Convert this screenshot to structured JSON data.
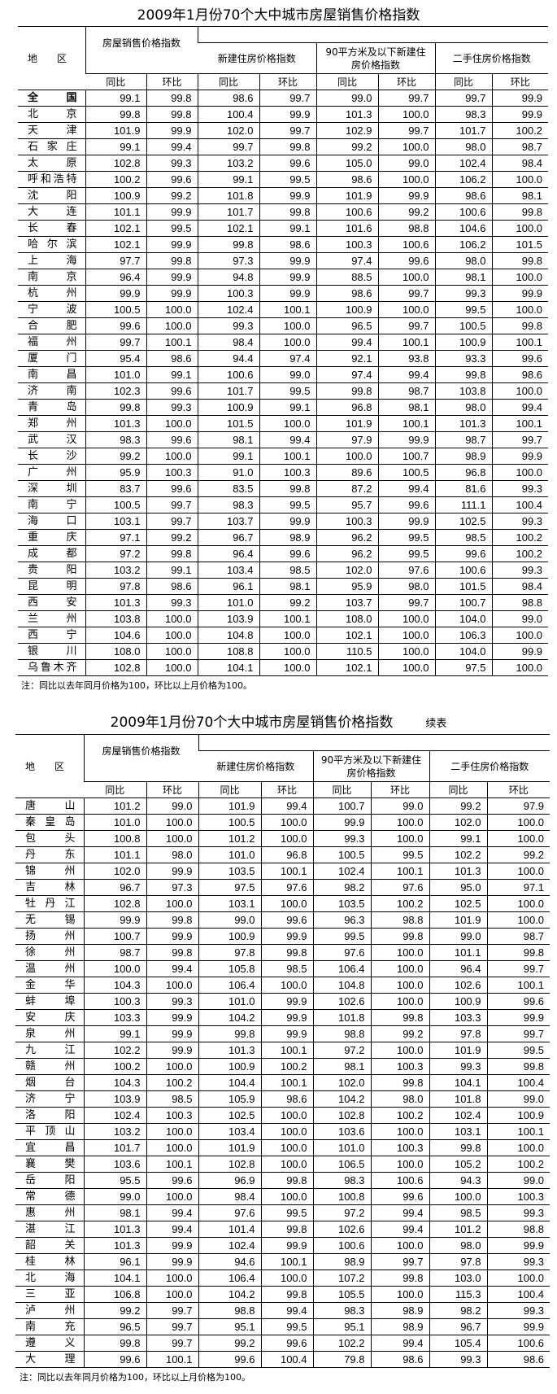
{
  "table1": {
    "title": "2009年1月份70个大中城市房屋销售价格指数",
    "header": {
      "region": "地　　区",
      "groups": [
        "房屋销售价格指数",
        "新建住房价格指数",
        "90平方米及以下新建住房价格指数",
        "二手住房价格指数"
      ],
      "sub": [
        "同比",
        "环比"
      ]
    },
    "rows": [
      {
        "city": "全国",
        "values": [
          "99.1",
          "99.8",
          "98.6",
          "99.7",
          "99.0",
          "99.7",
          "99.7",
          "99.9"
        ]
      },
      {
        "city": "北京",
        "values": [
          "99.8",
          "99.8",
          "100.4",
          "99.9",
          "101.3",
          "100.0",
          "98.3",
          "99.9"
        ]
      },
      {
        "city": "天津",
        "values": [
          "101.9",
          "99.9",
          "102.0",
          "99.7",
          "102.9",
          "99.7",
          "101.7",
          "100.2"
        ]
      },
      {
        "city": "石家庄",
        "values": [
          "99.1",
          "99.4",
          "99.7",
          "99.8",
          "99.2",
          "100.0",
          "98.0",
          "98.7"
        ]
      },
      {
        "city": "太原",
        "values": [
          "102.8",
          "99.3",
          "103.2",
          "99.6",
          "105.0",
          "99.0",
          "102.4",
          "98.4"
        ]
      },
      {
        "city": "呼和浩特",
        "values": [
          "100.2",
          "99.6",
          "99.1",
          "99.5",
          "98.6",
          "100.0",
          "106.2",
          "100.0"
        ]
      },
      {
        "city": "沈阳",
        "values": [
          "100.9",
          "99.2",
          "101.8",
          "99.9",
          "101.9",
          "99.9",
          "98.6",
          "98.1"
        ]
      },
      {
        "city": "大连",
        "values": [
          "101.1",
          "99.9",
          "101.7",
          "99.8",
          "100.6",
          "99.2",
          "100.6",
          "99.8"
        ]
      },
      {
        "city": "长春",
        "values": [
          "102.1",
          "99.5",
          "102.1",
          "99.1",
          "101.6",
          "98.8",
          "104.6",
          "100.0"
        ]
      },
      {
        "city": "哈尔滨",
        "values": [
          "102.1",
          "99.9",
          "99.8",
          "98.6",
          "100.3",
          "100.6",
          "106.2",
          "101.5"
        ]
      },
      {
        "city": "上海",
        "values": [
          "97.7",
          "99.8",
          "97.3",
          "99.9",
          "97.4",
          "99.6",
          "98.0",
          "99.8"
        ]
      },
      {
        "city": "南京",
        "values": [
          "96.4",
          "99.9",
          "94.8",
          "99.9",
          "88.5",
          "100.0",
          "98.1",
          "100.0"
        ]
      },
      {
        "city": "杭州",
        "values": [
          "99.9",
          "99.9",
          "100.3",
          "99.9",
          "98.6",
          "99.7",
          "99.3",
          "99.9"
        ]
      },
      {
        "city": "宁波",
        "values": [
          "100.5",
          "100.0",
          "102.4",
          "100.1",
          "100.9",
          "100.0",
          "99.5",
          "100.0"
        ]
      },
      {
        "city": "合肥",
        "values": [
          "99.6",
          "100.0",
          "99.3",
          "100.0",
          "96.5",
          "99.7",
          "100.5",
          "99.8"
        ]
      },
      {
        "city": "福州",
        "values": [
          "99.7",
          "100.1",
          "98.4",
          "100.0",
          "99.4",
          "100.1",
          "100.9",
          "100.1"
        ]
      },
      {
        "city": "厦门",
        "values": [
          "95.4",
          "98.6",
          "94.4",
          "97.4",
          "92.1",
          "93.8",
          "93.3",
          "99.6"
        ]
      },
      {
        "city": "南昌",
        "values": [
          "101.0",
          "99.1",
          "100.6",
          "99.0",
          "97.4",
          "99.4",
          "99.8",
          "98.6"
        ]
      },
      {
        "city": "济南",
        "values": [
          "102.3",
          "99.6",
          "101.7",
          "99.5",
          "99.8",
          "98.7",
          "103.8",
          "100.0"
        ]
      },
      {
        "city": "青岛",
        "values": [
          "99.8",
          "99.3",
          "100.9",
          "99.1",
          "96.8",
          "98.1",
          "98.0",
          "99.4"
        ]
      },
      {
        "city": "郑州",
        "values": [
          "101.3",
          "100.0",
          "101.5",
          "100.0",
          "101.9",
          "100.1",
          "101.3",
          "100.1"
        ]
      },
      {
        "city": "武汉",
        "values": [
          "98.3",
          "99.6",
          "98.1",
          "99.4",
          "97.9",
          "99.9",
          "98.7",
          "99.7"
        ]
      },
      {
        "city": "长沙",
        "values": [
          "99.2",
          "100.0",
          "99.1",
          "100.1",
          "100.0",
          "100.7",
          "98.9",
          "99.9"
        ]
      },
      {
        "city": "广州",
        "values": [
          "95.9",
          "100.3",
          "91.0",
          "100.3",
          "89.6",
          "100.5",
          "96.8",
          "100.0"
        ]
      },
      {
        "city": "深圳",
        "values": [
          "83.7",
          "99.6",
          "83.5",
          "99.8",
          "87.2",
          "99.4",
          "81.6",
          "99.3"
        ]
      },
      {
        "city": "南宁",
        "values": [
          "100.5",
          "99.7",
          "98.3",
          "99.5",
          "95.7",
          "99.6",
          "111.1",
          "100.4"
        ]
      },
      {
        "city": "海口",
        "values": [
          "103.1",
          "99.7",
          "103.7",
          "99.9",
          "100.3",
          "99.9",
          "102.5",
          "99.3"
        ]
      },
      {
        "city": "重庆",
        "values": [
          "97.1",
          "99.2",
          "96.7",
          "98.9",
          "96.2",
          "99.5",
          "98.5",
          "100.2"
        ]
      },
      {
        "city": "成都",
        "values": [
          "97.2",
          "99.8",
          "96.4",
          "99.6",
          "96.2",
          "99.5",
          "99.6",
          "100.2"
        ]
      },
      {
        "city": "贵阳",
        "values": [
          "103.2",
          "99.1",
          "103.4",
          "98.5",
          "102.0",
          "97.6",
          "100.6",
          "99.3"
        ]
      },
      {
        "city": "昆明",
        "values": [
          "97.8",
          "98.6",
          "96.1",
          "98.1",
          "95.9",
          "98.0",
          "101.5",
          "98.4"
        ]
      },
      {
        "city": "西安",
        "values": [
          "101.3",
          "99.3",
          "101.0",
          "99.2",
          "103.7",
          "99.7",
          "100.7",
          "98.8"
        ]
      },
      {
        "city": "兰州",
        "values": [
          "103.8",
          "100.0",
          "103.9",
          "100.1",
          "108.0",
          "100.0",
          "104.0",
          "99.0"
        ]
      },
      {
        "city": "西宁",
        "values": [
          "104.6",
          "100.0",
          "104.8",
          "100.0",
          "102.1",
          "100.0",
          "106.3",
          "100.0"
        ]
      },
      {
        "city": "银川",
        "values": [
          "108.0",
          "100.0",
          "108.8",
          "100.0",
          "110.5",
          "100.0",
          "104.0",
          "99.9"
        ]
      },
      {
        "city": "乌鲁木齐",
        "values": [
          "102.8",
          "100.0",
          "104.1",
          "100.0",
          "102.1",
          "100.0",
          "97.5",
          "100.0"
        ]
      }
    ],
    "note": "注：同比以去年同月价格为100，环比以上月价格为100。"
  },
  "table2": {
    "title": "2009年1月份70个大中城市房屋销售价格指数",
    "suffix": "续表",
    "header": {
      "region": "地　　区",
      "groups": [
        "房屋销售价格指数",
        "新建住房价格指数",
        "90平方米及以下新建住房价格指数",
        "二手住房价格指数"
      ],
      "sub": [
        "同比",
        "环比"
      ]
    },
    "rows": [
      {
        "city": "唐山",
        "values": [
          "101.2",
          "99.0",
          "101.9",
          "99.4",
          "100.7",
          "99.0",
          "99.2",
          "97.9"
        ]
      },
      {
        "city": "秦皇岛",
        "values": [
          "101.0",
          "100.0",
          "100.5",
          "100.0",
          "99.9",
          "100.0",
          "102.0",
          "100.0"
        ]
      },
      {
        "city": "包头",
        "values": [
          "100.8",
          "100.0",
          "101.2",
          "100.0",
          "99.3",
          "100.0",
          "99.1",
          "100.0"
        ]
      },
      {
        "city": "丹东",
        "values": [
          "101.1",
          "98.0",
          "101.0",
          "96.8",
          "100.5",
          "99.5",
          "102.2",
          "99.2"
        ]
      },
      {
        "city": "锦州",
        "values": [
          "102.0",
          "99.9",
          "103.5",
          "100.1",
          "102.4",
          "100.1",
          "101.3",
          "100.0"
        ]
      },
      {
        "city": "吉林",
        "values": [
          "96.7",
          "97.3",
          "97.5",
          "97.6",
          "98.2",
          "97.6",
          "95.0",
          "97.1"
        ]
      },
      {
        "city": "牡丹江",
        "values": [
          "102.8",
          "100.0",
          "103.1",
          "100.0",
          "103.5",
          "100.2",
          "102.5",
          "100.0"
        ]
      },
      {
        "city": "无锡",
        "values": [
          "99.9",
          "99.8",
          "99.0",
          "99.6",
          "96.3",
          "98.8",
          "101.9",
          "100.0"
        ]
      },
      {
        "city": "扬州",
        "values": [
          "100.7",
          "99.9",
          "100.9",
          "99.9",
          "99.5",
          "99.8",
          "99.0",
          "98.7"
        ]
      },
      {
        "city": "徐州",
        "values": [
          "98.7",
          "99.8",
          "97.8",
          "99.8",
          "97.6",
          "100.0",
          "101.1",
          "99.8"
        ]
      },
      {
        "city": "温州",
        "values": [
          "100.0",
          "99.4",
          "105.8",
          "98.5",
          "106.4",
          "100.0",
          "96.4",
          "99.7"
        ]
      },
      {
        "city": "金华",
        "values": [
          "104.3",
          "100.0",
          "106.4",
          "100.0",
          "104.8",
          "100.0",
          "102.6",
          "100.1"
        ]
      },
      {
        "city": "蚌埠",
        "values": [
          "100.3",
          "99.3",
          "101.0",
          "99.9",
          "102.6",
          "100.0",
          "100.9",
          "99.6"
        ]
      },
      {
        "city": "安庆",
        "values": [
          "103.3",
          "99.9",
          "104.2",
          "99.9",
          "101.8",
          "99.8",
          "103.3",
          "99.9"
        ]
      },
      {
        "city": "泉州",
        "values": [
          "99.1",
          "99.9",
          "99.8",
          "99.9",
          "98.8",
          "99.2",
          "97.8",
          "99.7"
        ]
      },
      {
        "city": "九江",
        "values": [
          "102.2",
          "99.9",
          "101.3",
          "100.1",
          "97.2",
          "100.0",
          "101.9",
          "99.5"
        ]
      },
      {
        "city": "赣州",
        "values": [
          "100.2",
          "100.0",
          "100.9",
          "100.2",
          "98.1",
          "100.3",
          "99.3",
          "99.8"
        ]
      },
      {
        "city": "烟台",
        "values": [
          "104.3",
          "100.2",
          "104.4",
          "100.1",
          "102.0",
          "99.8",
          "104.1",
          "100.4"
        ]
      },
      {
        "city": "济宁",
        "values": [
          "103.9",
          "98.5",
          "105.9",
          "98.6",
          "104.2",
          "98.0",
          "101.8",
          "99.0"
        ]
      },
      {
        "city": "洛阳",
        "values": [
          "102.4",
          "100.3",
          "102.5",
          "100.0",
          "102.8",
          "100.2",
          "102.4",
          "100.9"
        ]
      },
      {
        "city": "平顶山",
        "values": [
          "103.2",
          "100.0",
          "103.4",
          "100.0",
          "103.6",
          "100.0",
          "103.1",
          "100.1"
        ]
      },
      {
        "city": "宜昌",
        "values": [
          "101.7",
          "100.0",
          "101.9",
          "100.0",
          "101.0",
          "100.3",
          "99.8",
          "100.0"
        ]
      },
      {
        "city": "襄樊",
        "values": [
          "103.6",
          "100.1",
          "102.8",
          "100.0",
          "106.5",
          "100.0",
          "105.2",
          "100.2"
        ]
      },
      {
        "city": "岳阳",
        "values": [
          "95.5",
          "99.6",
          "96.9",
          "99.8",
          "98.3",
          "100.6",
          "94.3",
          "99.0"
        ]
      },
      {
        "city": "常德",
        "values": [
          "99.0",
          "100.0",
          "98.4",
          "100.0",
          "100.8",
          "99.6",
          "100.0",
          "100.3"
        ]
      },
      {
        "city": "惠州",
        "values": [
          "98.1",
          "99.4",
          "97.6",
          "99.5",
          "97.2",
          "99.4",
          "98.5",
          "99.3"
        ]
      },
      {
        "city": "湛江",
        "values": [
          "101.3",
          "99.4",
          "101.4",
          "99.8",
          "102.6",
          "99.4",
          "101.2",
          "98.8"
        ]
      },
      {
        "city": "韶关",
        "values": [
          "101.3",
          "99.9",
          "102.4",
          "99.9",
          "100.6",
          "100.0",
          "98.0",
          "99.9"
        ]
      },
      {
        "city": "桂林",
        "values": [
          "96.1",
          "99.9",
          "94.6",
          "100.1",
          "98.9",
          "99.7",
          "97.8",
          "99.3"
        ]
      },
      {
        "city": "北海",
        "values": [
          "104.1",
          "100.0",
          "106.4",
          "100.0",
          "107.2",
          "99.8",
          "103.0",
          "100.0"
        ]
      },
      {
        "city": "三亚",
        "values": [
          "106.8",
          "100.0",
          "104.2",
          "99.8",
          "105.5",
          "100.0",
          "115.3",
          "100.4"
        ]
      },
      {
        "city": "泸州",
        "values": [
          "99.2",
          "99.7",
          "98.8",
          "99.4",
          "98.3",
          "98.9",
          "98.2",
          "99.3"
        ]
      },
      {
        "city": "南充",
        "values": [
          "96.5",
          "99.7",
          "95.1",
          "99.5",
          "95.1",
          "98.9",
          "96.7",
          "99.9"
        ]
      },
      {
        "city": "遵义",
        "values": [
          "99.8",
          "99.7",
          "99.2",
          "99.6",
          "102.2",
          "99.4",
          "105.4",
          "100.6"
        ]
      },
      {
        "city": "大理",
        "values": [
          "99.6",
          "100.1",
          "99.6",
          "100.4",
          "79.8",
          "98.6",
          "99.3",
          "98.6"
        ]
      }
    ],
    "note": "注：同比以去年同月价格为100，环比以上月价格为100。"
  }
}
